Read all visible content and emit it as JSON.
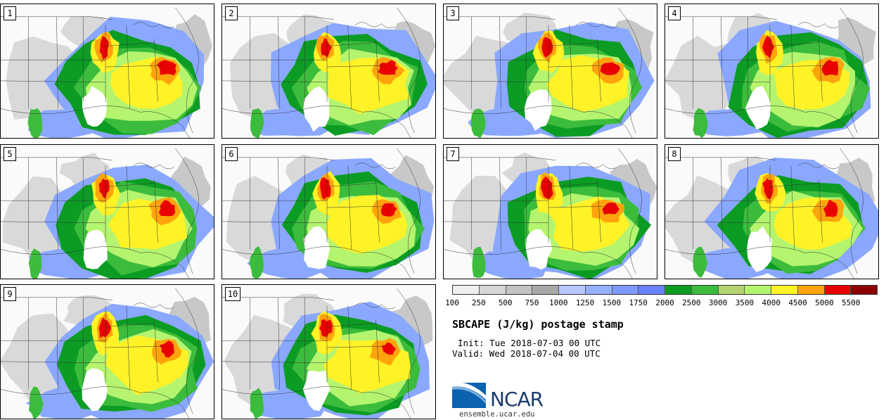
{
  "title": "SBCAPE (J/kg) postage stamp",
  "init": "Init: Tue 2018-07-03 00 UTC",
  "valid": "Valid: Wed 2018-07-04 00 UTC",
  "logo_text": "NCAR",
  "website": "ensemble.ucar.edu",
  "members": [
    "1",
    "2",
    "3",
    "4",
    "5",
    "6",
    "7",
    "8",
    "9",
    "10"
  ],
  "colorbar": {
    "colors": [
      "#eeeeee",
      "#d6d6d6",
      "#c2c2c2",
      "#a8a8a8",
      "#b8c8ff",
      "#94b0ff",
      "#7e98ff",
      "#6a80ff",
      "#0c9c24",
      "#3cbc3c",
      "#b4d26e",
      "#b4f46e",
      "#fff227",
      "#ffa40c",
      "#e80000",
      "#8b0000"
    ],
    "labels": [
      "100",
      "250",
      "500",
      "750",
      "1000",
      "1250",
      "1500",
      "1750",
      "2000",
      "2500",
      "3000",
      "3500",
      "4000",
      "4500",
      "5000",
      "5500"
    ]
  },
  "field_colors": {
    "land": "#fafafa",
    "low": "#d9d9d9",
    "blue": "#8aa8ff",
    "green_dark": "#0c9c24",
    "green": "#3cbc3c",
    "green_light": "#b4f46e",
    "yellow": "#fff227",
    "orange": "#ffa40c",
    "red": "#e80000"
  }
}
